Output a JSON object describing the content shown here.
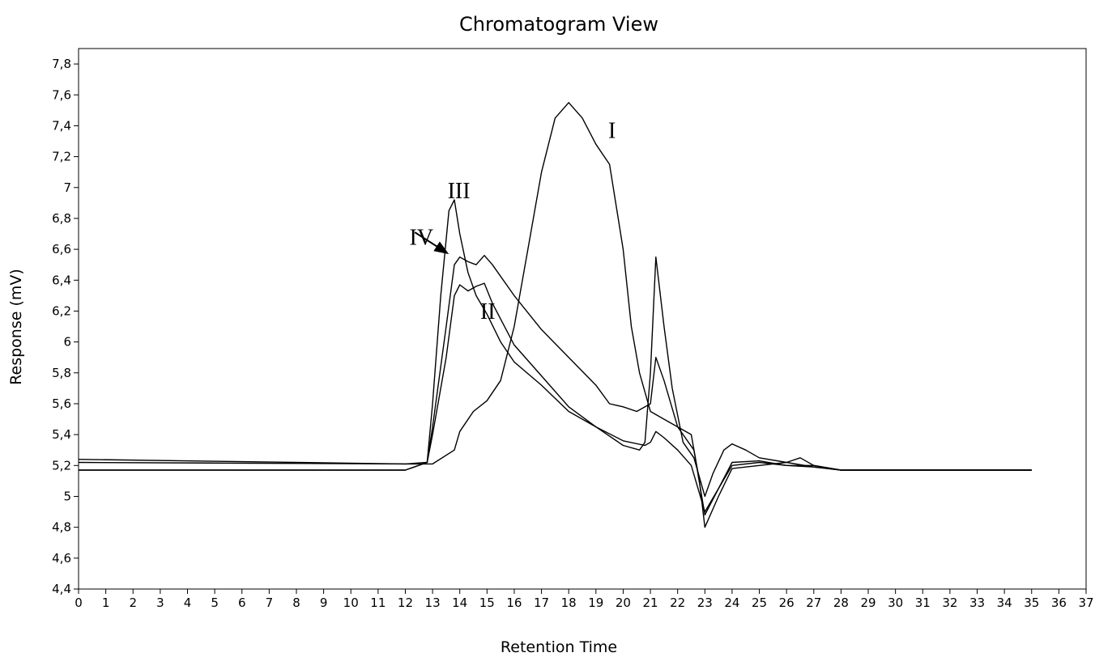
{
  "chart_data": {
    "type": "line",
    "title": "Chromatogram View",
    "xlabel": "Retention Time",
    "ylabel": "Response (mV)",
    "xlim": [
      0,
      37
    ],
    "ylim": [
      4.4,
      7.9
    ],
    "x_ticks": [
      "0",
      "1",
      "2",
      "3",
      "4",
      "5",
      "6",
      "7",
      "8",
      "9",
      "10",
      "11",
      "12",
      "13",
      "14",
      "15",
      "16",
      "17",
      "18",
      "19",
      "20",
      "21",
      "22",
      "23",
      "24",
      "25",
      "26",
      "27",
      "28",
      "29",
      "30",
      "31",
      "32",
      "33",
      "34",
      "35",
      "36",
      "37"
    ],
    "y_ticks": [
      {
        "v": 4.4,
        "label": "4,4"
      },
      {
        "v": 4.6,
        "label": "4,6"
      },
      {
        "v": 4.8,
        "label": "4,8"
      },
      {
        "v": 5.0,
        "label": "5"
      },
      {
        "v": 5.2,
        "label": "5,2"
      },
      {
        "v": 5.4,
        "label": "5,4"
      },
      {
        "v": 5.6,
        "label": "5,6"
      },
      {
        "v": 5.8,
        "label": "5,8"
      },
      {
        "v": 6.0,
        "label": "6"
      },
      {
        "v": 6.2,
        "label": "6,2"
      },
      {
        "v": 6.4,
        "label": "6,4"
      },
      {
        "v": 6.6,
        "label": "6,6"
      },
      {
        "v": 6.8,
        "label": "6,8"
      },
      {
        "v": 7.0,
        "label": "7"
      },
      {
        "v": 7.2,
        "label": "7,2"
      },
      {
        "v": 7.4,
        "label": "7,4"
      },
      {
        "v": 7.6,
        "label": "7,6"
      },
      {
        "v": 7.8,
        "label": "7,8"
      }
    ],
    "grid": false,
    "series": [
      {
        "name": "I",
        "points": [
          [
            0,
            5.22
          ],
          [
            12,
            5.21
          ],
          [
            13,
            5.21
          ],
          [
            13.8,
            5.3
          ],
          [
            14,
            5.42
          ],
          [
            14.5,
            5.55
          ],
          [
            15,
            5.62
          ],
          [
            15.5,
            5.75
          ],
          [
            16,
            6.1
          ],
          [
            16.5,
            6.6
          ],
          [
            17,
            7.1
          ],
          [
            17.5,
            7.45
          ],
          [
            18,
            7.55
          ],
          [
            18.5,
            7.45
          ],
          [
            19,
            7.28
          ],
          [
            19.5,
            7.15
          ],
          [
            20,
            6.6
          ],
          [
            20.3,
            6.1
          ],
          [
            20.6,
            5.8
          ],
          [
            21,
            5.55
          ],
          [
            21.5,
            5.5
          ],
          [
            22,
            5.45
          ],
          [
            22.5,
            5.4
          ],
          [
            22.8,
            5.1
          ],
          [
            23,
            4.8
          ],
          [
            23.5,
            5.0
          ],
          [
            24,
            5.18
          ],
          [
            25,
            5.2
          ],
          [
            26,
            5.22
          ],
          [
            26.5,
            5.25
          ],
          [
            27,
            5.2
          ],
          [
            28,
            5.17
          ],
          [
            35,
            5.17
          ]
        ]
      },
      {
        "name": "II",
        "points": [
          [
            0,
            5.17
          ],
          [
            12,
            5.17
          ],
          [
            12.8,
            5.22
          ],
          [
            13,
            5.4
          ],
          [
            13.5,
            5.9
          ],
          [
            13.8,
            6.3
          ],
          [
            14,
            6.37
          ],
          [
            14.3,
            6.33
          ],
          [
            14.6,
            6.36
          ],
          [
            14.9,
            6.38
          ],
          [
            15.2,
            6.25
          ],
          [
            16,
            5.98
          ],
          [
            17,
            5.78
          ],
          [
            18,
            5.58
          ],
          [
            19,
            5.45
          ],
          [
            20,
            5.36
          ],
          [
            20.8,
            5.33
          ],
          [
            21,
            5.35
          ],
          [
            21.2,
            5.42
          ],
          [
            21.5,
            5.38
          ],
          [
            22,
            5.3
          ],
          [
            22.5,
            5.2
          ],
          [
            23,
            4.9
          ],
          [
            23.5,
            5.05
          ],
          [
            24,
            5.2
          ],
          [
            25,
            5.22
          ],
          [
            26,
            5.2
          ],
          [
            27,
            5.2
          ],
          [
            28,
            5.17
          ],
          [
            35,
            5.17
          ]
        ]
      },
      {
        "name": "III",
        "points": [
          [
            0,
            5.24
          ],
          [
            12,
            5.21
          ],
          [
            12.8,
            5.22
          ],
          [
            13,
            5.6
          ],
          [
            13.3,
            6.3
          ],
          [
            13.6,
            6.85
          ],
          [
            13.8,
            6.92
          ],
          [
            14,
            6.7
          ],
          [
            14.3,
            6.45
          ],
          [
            14.6,
            6.3
          ],
          [
            15,
            6.18
          ],
          [
            15.5,
            6.0
          ],
          [
            16,
            5.87
          ],
          [
            17,
            5.72
          ],
          [
            18,
            5.55
          ],
          [
            19,
            5.45
          ],
          [
            20,
            5.33
          ],
          [
            20.6,
            5.3
          ],
          [
            20.8,
            5.35
          ],
          [
            21,
            5.8
          ],
          [
            21.2,
            6.55
          ],
          [
            21.5,
            6.1
          ],
          [
            21.8,
            5.7
          ],
          [
            22.2,
            5.35
          ],
          [
            22.6,
            5.25
          ],
          [
            23,
            5.0
          ],
          [
            23.3,
            5.15
          ],
          [
            23.7,
            5.3
          ],
          [
            24,
            5.34
          ],
          [
            24.5,
            5.3
          ],
          [
            25,
            5.25
          ],
          [
            26,
            5.22
          ],
          [
            27,
            5.19
          ],
          [
            28,
            5.17
          ],
          [
            35,
            5.17
          ]
        ]
      },
      {
        "name": "IV",
        "points": [
          [
            0,
            5.17
          ],
          [
            12,
            5.17
          ],
          [
            12.8,
            5.22
          ],
          [
            13,
            5.45
          ],
          [
            13.5,
            6.1
          ],
          [
            13.8,
            6.5
          ],
          [
            14,
            6.55
          ],
          [
            14.3,
            6.52
          ],
          [
            14.6,
            6.5
          ],
          [
            14.9,
            6.56
          ],
          [
            15.2,
            6.5
          ],
          [
            16,
            6.3
          ],
          [
            17,
            6.08
          ],
          [
            18,
            5.9
          ],
          [
            19,
            5.72
          ],
          [
            19.5,
            5.6
          ],
          [
            20,
            5.58
          ],
          [
            20.5,
            5.55
          ],
          [
            21,
            5.6
          ],
          [
            21.2,
            5.9
          ],
          [
            21.5,
            5.75
          ],
          [
            22,
            5.45
          ],
          [
            22.6,
            5.3
          ],
          [
            23,
            4.88
          ],
          [
            23.5,
            5.05
          ],
          [
            24,
            5.22
          ],
          [
            25,
            5.23
          ],
          [
            26,
            5.2
          ],
          [
            27,
            5.19
          ],
          [
            28,
            5.17
          ],
          [
            35,
            5.17
          ]
        ]
      }
    ],
    "annotations": [
      {
        "text": "I",
        "x": 19.45,
        "y": 7.32
      },
      {
        "text": "III",
        "x": 13.55,
        "y": 6.93
      },
      {
        "text": "IV",
        "x": 12.15,
        "y": 6.63
      },
      {
        "text": "II",
        "x": 14.75,
        "y": 6.15
      }
    ],
    "arrow": {
      "from": [
        12.35,
        6.71
      ],
      "to": [
        13.5,
        6.58
      ]
    }
  }
}
